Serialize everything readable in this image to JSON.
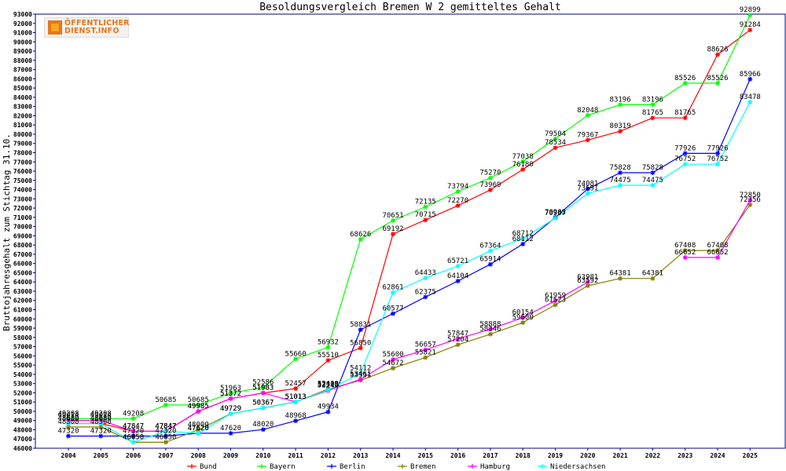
{
  "logo": {
    "line1": "ÖFFENTLICHER",
    "line2": "DIENST.INFO"
  },
  "chart_data": {
    "type": "line",
    "title": "Besoldungsvergleich Bremen W 2 gemitteltes Gehalt",
    "xlabel": "",
    "ylabel": "Bruttojahresgehalt zum Stichtag 31.10.",
    "x": [
      "2004",
      "2005",
      "2006",
      "2007",
      "2008",
      "2009",
      "2010",
      "2011",
      "2012",
      "2013",
      "2014",
      "2015",
      "2016",
      "2017",
      "2018",
      "2019",
      "2020",
      "2021",
      "2022",
      "2023",
      "2024",
      "2025"
    ],
    "ylim": [
      46000,
      93000
    ],
    "ytick_step": 1000,
    "grid": false,
    "legend_position": "bottom",
    "series": [
      {
        "name": "Bund",
        "color": "#ff0000",
        "values": [
          48680,
          48680,
          47847,
          47847,
          49985,
          51372,
          51983,
          52457,
          55510,
          56850,
          69192,
          70715,
          72270,
          73969,
          76180,
          78534,
          79367,
          80319,
          81765,
          81765,
          88626,
          91284
        ]
      },
      {
        "name": "Bayern",
        "color": "#00ff00",
        "values": [
          49208,
          49208,
          49208,
          50685,
          50685,
          51963,
          52586,
          55660,
          56932,
          68626,
          70651,
          72135,
          73794,
          75270,
          77038,
          79504,
          82048,
          83196,
          83196,
          85526,
          85526,
          92899
        ]
      },
      {
        "name": "Berlin",
        "color": "#0000ff",
        "values": [
          47320,
          47320,
          47320,
          47320,
          47620,
          47620,
          48020,
          48968,
          49934,
          58831,
          60577,
          62375,
          64104,
          65914,
          68112,
          70983,
          74081,
          75828,
          75828,
          77926,
          77926,
          85966
        ]
      },
      {
        "name": "Bremen",
        "color": "#808000",
        "values": [
          48300,
          48300,
          46650,
          46650,
          48000,
          49729,
          50367,
          51013,
          52409,
          53351,
          54672,
          55821,
          57204,
          58346,
          59600,
          61523,
          63592,
          64381,
          64381,
          67408,
          67408,
          72356
        ]
      },
      {
        "name": "Hamburg",
        "color": "#ff00ff",
        "values": [
          49014,
          49014,
          47847,
          47847,
          49985,
          51372,
          51983,
          51013,
          52240,
          53461,
          55600,
          56657,
          57847,
          58888,
          60154,
          61959,
          63981,
          null,
          null,
          66652,
          66652,
          72850
        ]
      },
      {
        "name": "Niedersachsen",
        "color": "#00ffff",
        "values": [
          48680,
          48680,
          46650,
          47847,
          47620,
          49729,
          50367,
          51013,
          52318,
          54112,
          62861,
          64433,
          65721,
          67364,
          68712,
          70907,
          73591,
          74475,
          74475,
          76752,
          76752,
          83478
        ]
      }
    ]
  }
}
